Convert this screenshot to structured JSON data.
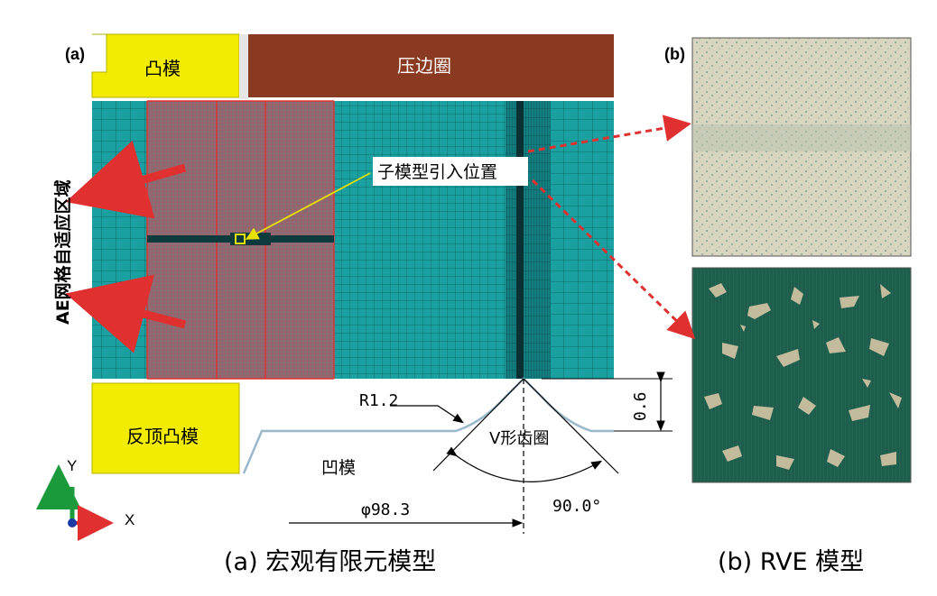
{
  "panel_a": {
    "label": "(a)",
    "punch_label": "凸模",
    "blank_holder_label": "压边圈",
    "counter_punch_label": "反顶凸模",
    "die_label": "凹模",
    "submodel_label": "子模型引入位置",
    "ae_region_label": "AE网格自适应区域",
    "radius_label": "R1.2",
    "v_ring_label": "V形齿圈",
    "height_label": "0.6",
    "angle_label": "90.0°",
    "diameter_label": "φ98.3",
    "axis_y": "Y",
    "axis_x": "X",
    "caption": "(a) 宏观有限元模型"
  },
  "panel_b": {
    "label": "(b)",
    "caption": "(b) RVE 模型"
  },
  "colors": {
    "punch_yellow": "#f2ec00",
    "blank_holder_brown": "#8b3a22",
    "mesh_teal": "#1a9a9a",
    "refine_red": "#e03030",
    "arrow_red": "#e03030",
    "rve_light": "#d8d5bd",
    "rve_dark": "#1e5a4a"
  }
}
